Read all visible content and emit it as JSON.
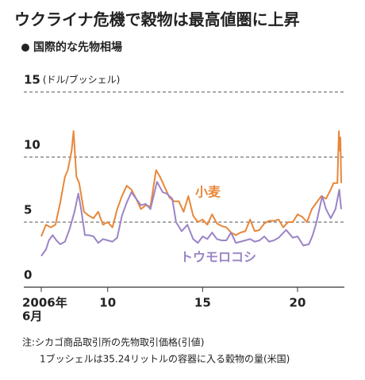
{
  "chart_data": {
    "type": "line",
    "title": "ウクライナ危機で穀物は最高値圏に上昇",
    "subtitle": "国際的な先物相場",
    "y_unit": "(ドル/ブッシェル)",
    "ylim": [
      0,
      15
    ],
    "yticks": [
      0,
      5,
      10,
      15
    ],
    "xlim": [
      2006.5,
      2022.3
    ],
    "xticks": [
      {
        "value": 2006.5,
        "label": "2006年"
      },
      {
        "value": 2010,
        "label": "10"
      },
      {
        "value": 2015,
        "label": "15"
      },
      {
        "value": 2020,
        "label": "20"
      }
    ],
    "x_start_month": "6月",
    "grid": true,
    "series": [
      {
        "name": "小麦",
        "color": "#e8873a",
        "x": [
          2006.5,
          2006.75,
          2007.0,
          2007.25,
          2007.5,
          2007.75,
          2007.9,
          2008.1,
          2008.2,
          2008.35,
          2008.5,
          2008.75,
          2009.0,
          2009.25,
          2009.5,
          2009.75,
          2010.0,
          2010.25,
          2010.5,
          2010.75,
          2011.0,
          2011.25,
          2011.5,
          2011.75,
          2012.0,
          2012.25,
          2012.55,
          2012.75,
          2013.0,
          2013.25,
          2013.5,
          2013.75,
          2014.0,
          2014.25,
          2014.5,
          2014.75,
          2015.0,
          2015.25,
          2015.5,
          2015.75,
          2016.0,
          2016.25,
          2016.5,
          2016.75,
          2017.0,
          2017.25,
          2017.5,
          2017.75,
          2018.0,
          2018.25,
          2018.5,
          2018.75,
          2019.0,
          2019.25,
          2019.5,
          2019.75,
          2020.0,
          2020.25,
          2020.5,
          2020.75,
          2021.0,
          2021.25,
          2021.5,
          2021.75,
          2021.9,
          2022.1,
          2022.18,
          2022.22,
          2022.26,
          2022.3
        ],
        "values": [
          3.9,
          4.8,
          4.6,
          4.8,
          6.5,
          8.5,
          9.0,
          10.5,
          12.0,
          8.5,
          8.0,
          5.8,
          5.5,
          5.3,
          5.8,
          4.8,
          5.0,
          4.6,
          6.0,
          7.0,
          7.8,
          7.5,
          6.8,
          6.0,
          6.3,
          6.2,
          9.0,
          8.5,
          7.7,
          6.9,
          6.6,
          6.6,
          5.8,
          7.0,
          5.5,
          5.0,
          5.2,
          4.8,
          5.6,
          4.9,
          4.7,
          4.6,
          4.2,
          4.0,
          4.2,
          4.3,
          5.2,
          4.3,
          4.4,
          4.9,
          5.1,
          5.1,
          5.2,
          4.6,
          5.0,
          5.0,
          5.6,
          5.4,
          5.0,
          6.0,
          6.5,
          7.0,
          6.8,
          7.5,
          8.0,
          8.0,
          12.0,
          10.5,
          11.5,
          8.0
        ]
      },
      {
        "name": "トウモロコシ",
        "color": "#9b84c6",
        "x": [
          2006.5,
          2006.75,
          2006.9,
          2007.1,
          2007.3,
          2007.5,
          2007.75,
          2008.0,
          2008.25,
          2008.45,
          2008.6,
          2008.8,
          2009.0,
          2009.25,
          2009.5,
          2009.75,
          2010.0,
          2010.25,
          2010.5,
          2010.75,
          2011.0,
          2011.25,
          2011.5,
          2011.75,
          2012.0,
          2012.25,
          2012.6,
          2012.9,
          2013.1,
          2013.4,
          2013.6,
          2013.9,
          2014.2,
          2014.5,
          2014.75,
          2015.0,
          2015.25,
          2015.5,
          2015.75,
          2016.0,
          2016.25,
          2016.5,
          2016.75,
          2017.0,
          2017.25,
          2017.5,
          2017.75,
          2018.0,
          2018.25,
          2018.5,
          2018.75,
          2019.0,
          2019.4,
          2019.75,
          2020.0,
          2020.3,
          2020.6,
          2020.8,
          2021.0,
          2021.3,
          2021.5,
          2021.75,
          2022.0,
          2022.2,
          2022.3
        ],
        "values": [
          2.4,
          2.9,
          3.6,
          4.0,
          3.6,
          3.3,
          3.5,
          4.5,
          5.8,
          7.2,
          6.0,
          4.0,
          4.0,
          3.9,
          3.4,
          3.7,
          3.6,
          3.5,
          3.8,
          5.5,
          6.5,
          7.3,
          6.8,
          6.3,
          6.4,
          6.0,
          8.1,
          7.3,
          7.2,
          6.8,
          5.0,
          4.3,
          4.8,
          3.7,
          3.4,
          3.9,
          3.7,
          4.2,
          3.7,
          3.6,
          3.6,
          4.2,
          3.4,
          3.5,
          3.6,
          3.7,
          3.5,
          3.6,
          3.9,
          3.5,
          3.6,
          3.8,
          4.4,
          3.8,
          3.9,
          3.2,
          3.3,
          4.0,
          5.0,
          7.0,
          6.0,
          5.3,
          6.0,
          7.5,
          6.0
        ]
      }
    ],
    "notes": [
      "注:シカゴ商品取引所の先物取引価格(引値)",
      "1ブッシェルは35.24リットルの容器に入る穀物の量(米国)"
    ]
  }
}
